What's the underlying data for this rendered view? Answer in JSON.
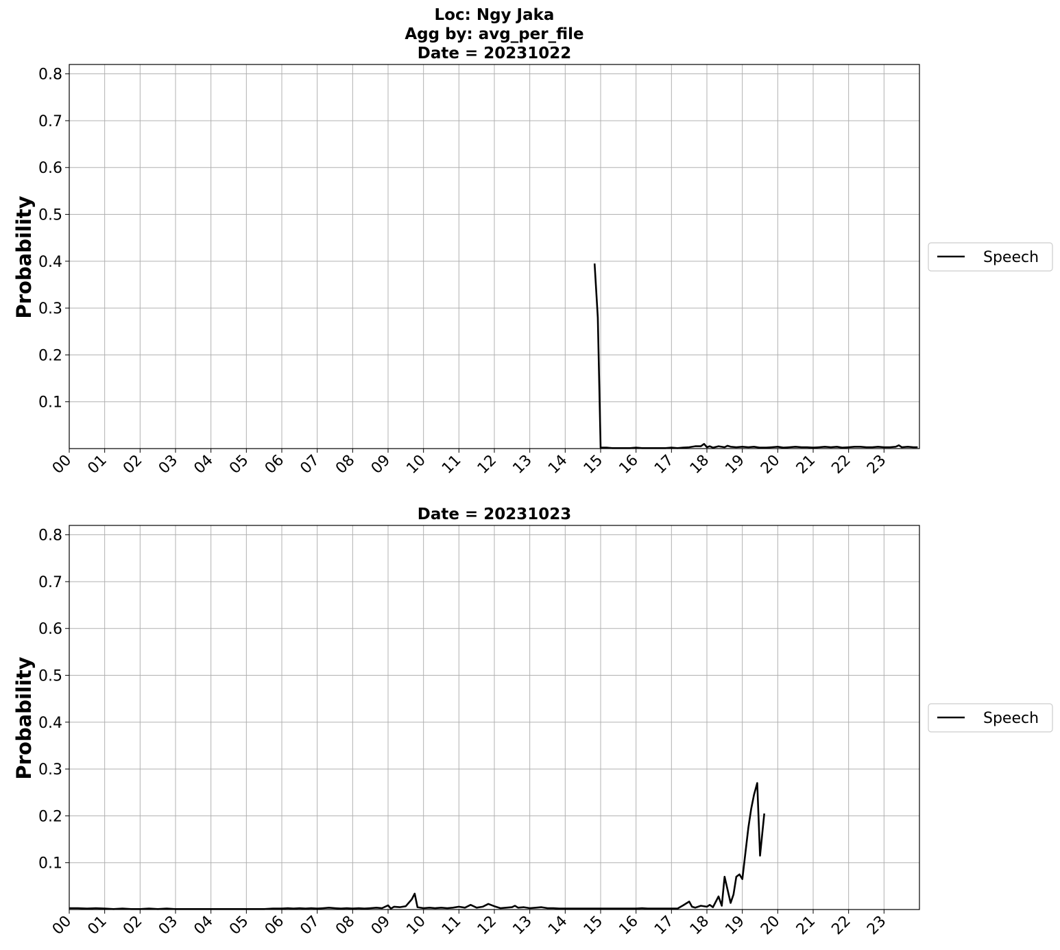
{
  "figure": {
    "title_lines": [
      "Loc: Ngy Jaka",
      "Agg by: avg_per_file",
      "Date = 20231022"
    ]
  },
  "chart_data": [
    {
      "type": "line",
      "title": "Date = 20231022",
      "xlabel": "",
      "ylabel": "Probability",
      "x_tick_labels": [
        "00",
        "01",
        "02",
        "03",
        "04",
        "05",
        "06",
        "07",
        "08",
        "09",
        "10",
        "11",
        "12",
        "13",
        "14",
        "15",
        "16",
        "17",
        "18",
        "19",
        "20",
        "21",
        "22",
        "23"
      ],
      "xlim": [
        0,
        24
      ],
      "ylim": [
        0,
        0.82
      ],
      "y_ticks": [
        0.1,
        0.2,
        0.3,
        0.4,
        0.5,
        0.6,
        0.7,
        0.8
      ],
      "grid": true,
      "legend_position": "right",
      "series": [
        {
          "name": "Speech",
          "color": "#000000",
          "x": [
            14.83,
            14.92,
            15.0,
            15.17,
            15.33,
            15.5,
            15.67,
            15.83,
            16.0,
            16.17,
            16.33,
            16.5,
            16.67,
            16.83,
            17.0,
            17.17,
            17.33,
            17.5,
            17.67,
            17.83,
            17.92,
            18.0,
            18.08,
            18.17,
            18.33,
            18.5,
            18.58,
            18.67,
            18.83,
            19.0,
            19.17,
            19.33,
            19.5,
            19.67,
            19.83,
            20.0,
            20.17,
            20.33,
            20.5,
            20.67,
            20.83,
            21.0,
            21.17,
            21.33,
            21.5,
            21.67,
            21.83,
            22.0,
            22.17,
            22.33,
            22.5,
            22.67,
            22.83,
            23.0,
            23.17,
            23.33,
            23.42,
            23.5,
            23.67,
            23.83,
            23.95
          ],
          "y": [
            0.395,
            0.28,
            0.002,
            0.002,
            0.001,
            0.001,
            0.001,
            0.001,
            0.002,
            0.001,
            0.001,
            0.001,
            0.001,
            0.001,
            0.002,
            0.001,
            0.002,
            0.003,
            0.005,
            0.005,
            0.01,
            0.003,
            0.005,
            0.002,
            0.005,
            0.003,
            0.006,
            0.004,
            0.003,
            0.004,
            0.003,
            0.004,
            0.002,
            0.002,
            0.003,
            0.004,
            0.002,
            0.003,
            0.004,
            0.003,
            0.003,
            0.002,
            0.003,
            0.004,
            0.003,
            0.004,
            0.002,
            0.003,
            0.004,
            0.004,
            0.003,
            0.003,
            0.004,
            0.003,
            0.003,
            0.004,
            0.007,
            0.003,
            0.004,
            0.003,
            0.003
          ]
        }
      ]
    },
    {
      "type": "line",
      "title": "Date = 20231023",
      "xlabel": "",
      "ylabel": "Probability",
      "x_tick_labels": [
        "00",
        "01",
        "02",
        "03",
        "04",
        "05",
        "06",
        "07",
        "08",
        "09",
        "10",
        "11",
        "12",
        "13",
        "14",
        "15",
        "16",
        "17",
        "18",
        "19",
        "20",
        "21",
        "22",
        "23"
      ],
      "xlim": [
        0,
        24
      ],
      "ylim": [
        0,
        0.82
      ],
      "y_ticks": [
        0.1,
        0.2,
        0.3,
        0.4,
        0.5,
        0.6,
        0.7,
        0.8
      ],
      "grid": true,
      "legend_position": "right",
      "series": [
        {
          "name": "Speech",
          "color": "#000000",
          "x": [
            0.0,
            0.25,
            0.5,
            0.75,
            1.0,
            1.25,
            1.5,
            1.75,
            2.0,
            2.25,
            2.5,
            2.75,
            3.0,
            3.25,
            3.5,
            3.75,
            4.0,
            4.25,
            4.5,
            4.75,
            5.0,
            5.25,
            5.5,
            5.75,
            6.0,
            6.17,
            6.33,
            6.5,
            6.67,
            6.83,
            7.0,
            7.17,
            7.33,
            7.5,
            7.67,
            7.83,
            8.0,
            8.17,
            8.33,
            8.5,
            8.67,
            8.83,
            9.0,
            9.08,
            9.17,
            9.33,
            9.5,
            9.67,
            9.75,
            9.83,
            10.0,
            10.17,
            10.33,
            10.5,
            10.67,
            10.83,
            11.0,
            11.17,
            11.33,
            11.5,
            11.67,
            11.83,
            12.0,
            12.17,
            12.33,
            12.5,
            12.58,
            12.67,
            12.83,
            13.0,
            13.17,
            13.33,
            13.5,
            13.67,
            13.83,
            14.0,
            14.25,
            14.5,
            14.75,
            15.0,
            15.25,
            15.5,
            15.75,
            16.0,
            16.17,
            16.33,
            16.5,
            16.67,
            16.83,
            17.0,
            17.17,
            17.33,
            17.5,
            17.58,
            17.67,
            17.83,
            18.0,
            18.08,
            18.17,
            18.33,
            18.42,
            18.5,
            18.67,
            18.75,
            18.83,
            18.92,
            19.0,
            19.17,
            19.25,
            19.33,
            19.42,
            19.5,
            19.62
          ],
          "y": [
            0.003,
            0.003,
            0.002,
            0.003,
            0.002,
            0.001,
            0.002,
            0.001,
            0.001,
            0.002,
            0.001,
            0.002,
            0.001,
            0.001,
            0.001,
            0.001,
            0.001,
            0.001,
            0.001,
            0.001,
            0.001,
            0.001,
            0.001,
            0.002,
            0.002,
            0.003,
            0.002,
            0.003,
            0.002,
            0.003,
            0.002,
            0.003,
            0.004,
            0.003,
            0.002,
            0.003,
            0.002,
            0.003,
            0.002,
            0.003,
            0.004,
            0.003,
            0.009,
            0.002,
            0.006,
            0.005,
            0.007,
            0.022,
            0.034,
            0.005,
            0.003,
            0.004,
            0.003,
            0.004,
            0.003,
            0.004,
            0.006,
            0.004,
            0.01,
            0.004,
            0.006,
            0.012,
            0.007,
            0.003,
            0.004,
            0.005,
            0.008,
            0.004,
            0.005,
            0.003,
            0.004,
            0.005,
            0.003,
            0.003,
            0.002,
            0.002,
            0.002,
            0.002,
            0.002,
            0.002,
            0.002,
            0.002,
            0.002,
            0.002,
            0.003,
            0.002,
            0.002,
            0.002,
            0.002,
            0.002,
            0.002,
            0.009,
            0.017,
            0.006,
            0.004,
            0.008,
            0.006,
            0.01,
            0.005,
            0.028,
            0.008,
            0.07,
            0.014,
            0.032,
            0.07,
            0.075,
            0.065,
            0.175,
            0.215,
            0.245,
            0.27,
            0.115,
            0.205
          ]
        }
      ]
    }
  ]
}
